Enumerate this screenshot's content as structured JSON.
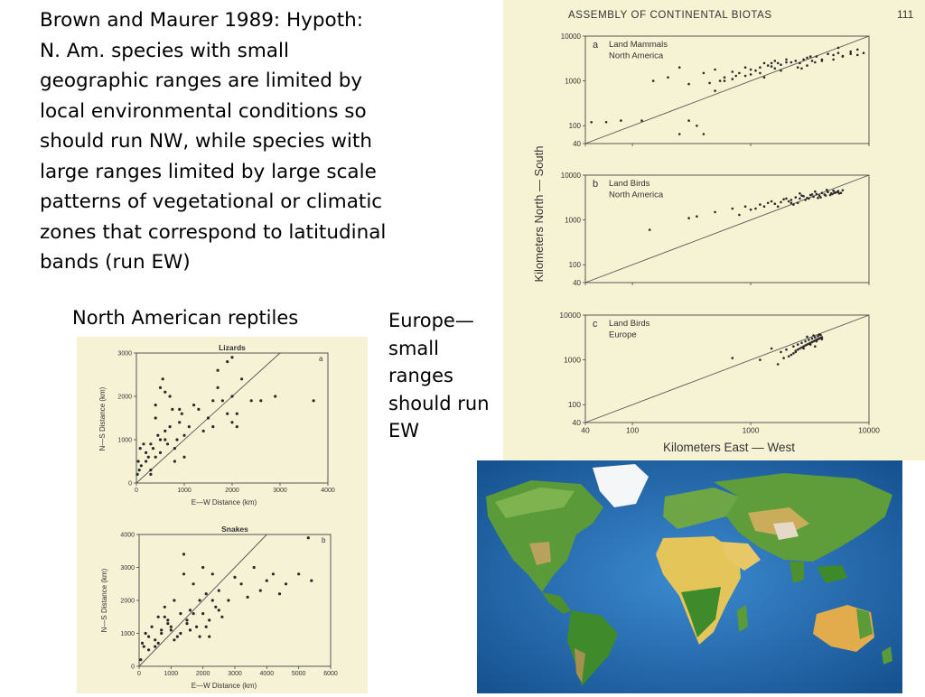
{
  "slide": {
    "main_text_lines": [
      "Brown and Maurer 1989:  Hypoth:",
      "N. Am. species with small",
      "geographic ranges are limited by",
      "local environmental conditions so",
      "should run NW, while species with",
      "large ranges limited by large scale",
      "patterns of vegetational or climatic",
      "zones that correspond to latitudinal",
      "bands (run EW)"
    ],
    "reptiles_caption": "North American reptiles",
    "europe_caption_lines": [
      "Europe—",
      "small",
      "ranges",
      "should run",
      "EW"
    ]
  },
  "biota_figure": {
    "header": "ASSEMBLY OF CONTINENTAL BIOTAS",
    "page_number": "111",
    "xlabel": "Kilometers East — West",
    "ylabel": "Kilometers North — South"
  },
  "reptile_figure": {
    "xlabel": "E—W Distance (km)",
    "ylabel": "N—S Distance (km)"
  },
  "chart_data": [
    {
      "type": "scatter",
      "panel_letter": "a",
      "title_lines": [
        "Land Mammals",
        "North America"
      ],
      "log_scale": true,
      "xlim": [
        40,
        10000
      ],
      "ylim": [
        40,
        10000
      ],
      "x_ticks": [
        "40",
        "100",
        "1000",
        "10000"
      ],
      "y_ticks": [
        "10000",
        "1000",
        "100",
        "40"
      ],
      "reference_line": "1:1",
      "x": [
        45,
        60,
        80,
        120,
        150,
        200,
        250,
        300,
        350,
        400,
        500,
        550,
        600,
        700,
        750,
        800,
        900,
        1000,
        1100,
        1200,
        1300,
        1400,
        1500,
        1600,
        1700,
        1800,
        2000,
        2200,
        2400,
        2600,
        2800,
        3000,
        3300,
        3600,
        4000,
        4500,
        5000,
        5500,
        6000,
        7000,
        8000,
        9000,
        400,
        600,
        900,
        1300,
        1800,
        2500,
        3500,
        5000,
        7000,
        250,
        450,
        700,
        1000,
        1500,
        2000,
        3000,
        4000,
        6000,
        8000,
        300,
        1200,
        2700,
        500,
        1600,
        3200,
        5500
      ],
      "y": [
        120,
        120,
        130,
        130,
        1000,
        1200,
        65,
        130,
        100,
        1500,
        1800,
        1000,
        1200,
        1600,
        1300,
        1500,
        2000,
        1800,
        1700,
        2000,
        2500,
        2200,
        2100,
        1900,
        2500,
        2300,
        3000,
        2600,
        2800,
        2500,
        3000,
        3300,
        2800,
        3500,
        3000,
        4000,
        3800,
        4200,
        3500,
        4500,
        5000,
        4200,
        65,
        1000,
        1300,
        1200,
        1700,
        2000,
        2600,
        3000,
        4000,
        2000,
        900,
        1100,
        1400,
        2500,
        2600,
        2200,
        2800,
        3600,
        3800,
        850,
        1500,
        1900,
        600,
        2800,
        3500,
        5500
      ]
    },
    {
      "type": "scatter",
      "panel_letter": "b",
      "title_lines": [
        "Land Birds",
        "North America"
      ],
      "log_scale": true,
      "xlim": [
        40,
        10000
      ],
      "ylim": [
        40,
        10000
      ],
      "x_ticks": [
        "40",
        "100",
        "1000",
        "10000"
      ],
      "y_ticks": [
        "10000",
        "1000",
        "100",
        "40"
      ],
      "reference_line": "1:1",
      "x": [
        140,
        300,
        350,
        500,
        700,
        800,
        900,
        1000,
        1200,
        1300,
        1500,
        1600,
        1800,
        2000,
        2200,
        2400,
        2600,
        2800,
        3000,
        3200,
        3400,
        3600,
        3800,
        4000,
        4200,
        4500,
        4800,
        5000,
        5200,
        5500,
        5800,
        6000,
        1100,
        1400,
        1700,
        2100,
        2500,
        2900,
        3300,
        3700,
        4300,
        4900,
        5400,
        2300,
        2700,
        3100,
        3500,
        3900,
        4400,
        4700,
        5100,
        5600,
        1900,
        2200,
        2600
      ],
      "y": [
        600,
        1100,
        1200,
        1500,
        1800,
        1300,
        2000,
        1700,
        2200,
        2000,
        2600,
        2300,
        2500,
        3000,
        2800,
        3200,
        3000,
        3400,
        3100,
        3600,
        3300,
        3800,
        3500,
        4000,
        3700,
        4200,
        3900,
        4500,
        4100,
        4400,
        4000,
        4600,
        1800,
        2400,
        2000,
        2600,
        2400,
        2800,
        3700,
        3100,
        3500,
        3800,
        4200,
        2200,
        3500,
        3000,
        4300,
        3200,
        4700,
        3600,
        4000,
        3900,
        2900,
        2400,
        3900
      ]
    },
    {
      "type": "scatter",
      "panel_letter": "c",
      "title_lines": [
        "Land Birds",
        "Europe"
      ],
      "log_scale": true,
      "xlim": [
        40,
        10000
      ],
      "ylim": [
        40,
        10000
      ],
      "x_ticks": [
        "40",
        "100",
        "1000",
        "10000"
      ],
      "y_ticks": [
        "10000",
        "1000",
        "100",
        "40"
      ],
      "reference_line": "1:1",
      "x": [
        700,
        1200,
        1500,
        1700,
        1800,
        2000,
        2200,
        2300,
        2400,
        2500,
        2600,
        2700,
        2800,
        2900,
        3000,
        3100,
        3200,
        3300,
        3400,
        3500,
        3600,
        3700,
        3800,
        3900,
        4000,
        2100,
        2300,
        2500,
        2700,
        2900,
        3100,
        3300,
        3500,
        3700,
        3900,
        1900,
        2400,
        2800,
        3200,
        3600,
        4000,
        3000,
        3400,
        3800,
        3500
      ],
      "y": [
        1100,
        1000,
        1800,
        800,
        1500,
        1700,
        1300,
        2000,
        1600,
        2200,
        1800,
        2400,
        2000,
        2600,
        2200,
        2800,
        2400,
        3000,
        2600,
        3200,
        2800,
        3400,
        3000,
        3600,
        3200,
        1200,
        1400,
        1700,
        1900,
        2100,
        2300,
        2500,
        2700,
        2900,
        3100,
        1100,
        1500,
        1800,
        2200,
        2600,
        2900,
        3300,
        3500,
        3700,
        2000
      ]
    },
    {
      "type": "scatter",
      "title": "Lizards",
      "panel_letter": "a",
      "xlim": [
        0,
        4000
      ],
      "ylim": [
        0,
        3000
      ],
      "x_ticks": [
        "0",
        "1000",
        "2000",
        "3000",
        "4000"
      ],
      "y_ticks": [
        "0",
        "1000",
        "2000",
        "3000"
      ],
      "reference_line": "1:1",
      "x": [
        20,
        40,
        60,
        80,
        100,
        150,
        200,
        250,
        300,
        350,
        400,
        450,
        500,
        550,
        600,
        650,
        700,
        750,
        800,
        850,
        900,
        950,
        1000,
        1100,
        1200,
        1300,
        1400,
        1500,
        1600,
        1700,
        1800,
        1900,
        2000,
        2100,
        2200,
        2400,
        2600,
        2900,
        3700,
        200,
        300,
        400,
        500,
        600,
        700,
        800,
        900,
        1000,
        400,
        500,
        600,
        1900,
        2000,
        1600,
        1700,
        2000,
        2100,
        300
      ],
      "y": [
        200,
        500,
        300,
        800,
        400,
        900,
        700,
        600,
        900,
        800,
        1500,
        1100,
        1000,
        2400,
        1200,
        900,
        2000,
        1700,
        800,
        1000,
        1400,
        1600,
        1100,
        1300,
        1800,
        1700,
        1200,
        1500,
        1900,
        2200,
        1900,
        1600,
        2000,
        1300,
        2400,
        1900,
        1900,
        2000,
        1900,
        500,
        300,
        600,
        700,
        1000,
        1300,
        500,
        1700,
        600,
        1800,
        2200,
        2100,
        2800,
        2900,
        1300,
        2600,
        1400,
        1600,
        200
      ]
    },
    {
      "type": "scatter",
      "title": "Snakes",
      "panel_letter": "b",
      "xlim": [
        0,
        6000
      ],
      "ylim": [
        0,
        4000
      ],
      "x_ticks": [
        "0",
        "1000",
        "2000",
        "3000",
        "4000",
        "5000",
        "6000"
      ],
      "y_ticks": [
        "0",
        "1000",
        "2000",
        "3000",
        "4000"
      ],
      "reference_line": "1:1",
      "x": [
        50,
        100,
        150,
        200,
        300,
        400,
        500,
        600,
        700,
        800,
        900,
        1000,
        1100,
        1200,
        1300,
        1400,
        1500,
        1600,
        1700,
        1800,
        1900,
        2000,
        2100,
        2200,
        2300,
        2400,
        2500,
        2600,
        2800,
        3000,
        3200,
        3400,
        3600,
        3800,
        4000,
        4200,
        4400,
        4600,
        5000,
        5300,
        5400,
        300,
        500,
        700,
        900,
        1100,
        1300,
        1500,
        1700,
        1900,
        2100,
        2300,
        2500,
        1400,
        1600,
        2000,
        2200,
        600,
        800,
        1000
      ],
      "y": [
        200,
        700,
        600,
        1000,
        500,
        1200,
        800,
        1500,
        1000,
        1800,
        1400,
        1100,
        2000,
        900,
        1600,
        3400,
        1300,
        1700,
        2500,
        1200,
        2000,
        1600,
        2200,
        1400,
        2800,
        1800,
        2300,
        1500,
        2000,
        2700,
        2500,
        2100,
        3000,
        2300,
        2600,
        2800,
        2200,
        2500,
        2800,
        3900,
        2600,
        900,
        600,
        1100,
        1300,
        800,
        1000,
        1400,
        1600,
        900,
        1200,
        2000,
        1700,
        2800,
        1100,
        3000,
        900,
        700,
        1500,
        1200
      ]
    }
  ]
}
